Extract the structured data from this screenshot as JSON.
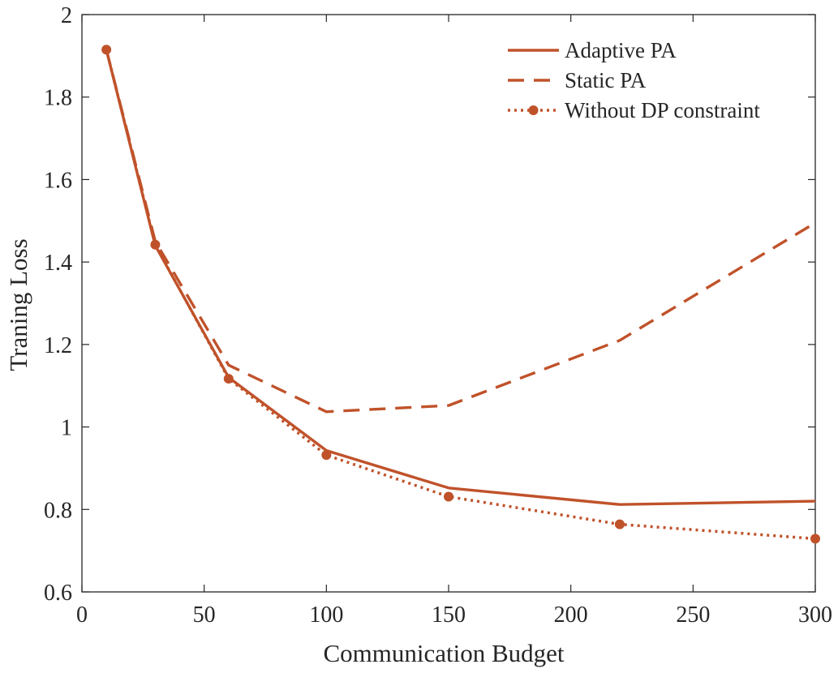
{
  "chart_data": {
    "type": "line",
    "title": "",
    "xlabel": "Communication Budget",
    "ylabel": "Traning Loss",
    "xlim": [
      0,
      300
    ],
    "ylim": [
      0.6,
      2
    ],
    "xticks": [
      0,
      50,
      100,
      150,
      200,
      250,
      300
    ],
    "yticks": [
      0.6,
      0.8,
      1,
      1.2,
      1.4,
      1.6,
      1.8,
      2
    ],
    "xtick_labels": [
      "0",
      "50",
      "100",
      "150",
      "200",
      "250",
      "300"
    ],
    "ytick_labels": [
      "0.6",
      "0.8",
      "1",
      "1.2",
      "1.4",
      "1.6",
      "1.8",
      "2"
    ],
    "grid": false,
    "legend_position": "top-right",
    "line_color": "#c0522a",
    "series": [
      {
        "name": "Adaptive PA",
        "style": "solid",
        "marker": "none",
        "x": [
          10,
          30,
          60,
          100,
          150,
          220,
          300
        ],
        "y": [
          1.915,
          1.44,
          1.12,
          0.943,
          0.852,
          0.812,
          0.82
        ]
      },
      {
        "name": "Static PA",
        "style": "dashed",
        "marker": "none",
        "x": [
          10,
          30,
          60,
          100,
          150,
          220,
          300
        ],
        "y": [
          1.915,
          1.45,
          1.15,
          1.037,
          1.052,
          1.21,
          1.495
        ]
      },
      {
        "name": "Without DP constraint",
        "style": "dotted",
        "marker": "circle",
        "x": [
          10,
          30,
          60,
          100,
          150,
          220,
          300
        ],
        "y": [
          1.915,
          1.442,
          1.117,
          0.932,
          0.831,
          0.764,
          0.729
        ]
      }
    ]
  }
}
